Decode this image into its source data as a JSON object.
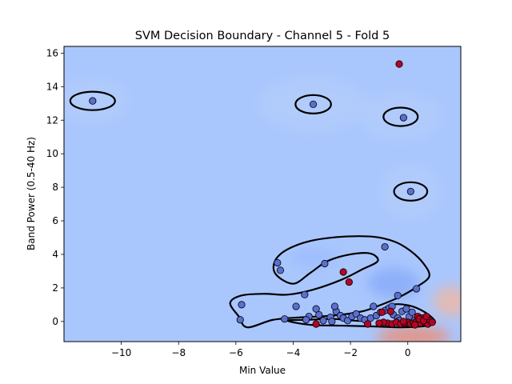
{
  "chart_data": {
    "type": "scatter",
    "title": "SVM Decision Boundary - Channel 5 - Fold 5",
    "xlabel": "Min Value",
    "ylabel": "Band Power (0.5-40 Hz)",
    "xlim": [
      -12.0,
      1.85
    ],
    "ylim": [
      -1.2,
      16.4
    ],
    "xticks": [
      -10,
      -8,
      -6,
      -4,
      -2,
      0
    ],
    "xtick_labels": [
      "−10",
      "−8",
      "−6",
      "−4",
      "−2",
      "0"
    ],
    "yticks": [
      0,
      2,
      4,
      6,
      8,
      10,
      12,
      14,
      16
    ],
    "ytick_labels": [
      "0",
      "2",
      "4",
      "6",
      "8",
      "10",
      "12",
      "14",
      "16"
    ],
    "grid": false,
    "colors": {
      "class_0": "#3b4cc0",
      "class_1": "#b40426",
      "background": "#aac7fd",
      "boundary": "#000000"
    },
    "series": [
      {
        "class": 0,
        "color": "#5a6fd0",
        "points": [
          [
            -11.0,
            13.15
          ],
          [
            -3.3,
            12.95
          ],
          [
            -0.15,
            12.15
          ],
          [
            0.1,
            7.75
          ],
          [
            -0.8,
            4.45
          ],
          [
            -4.55,
            3.5
          ],
          [
            -4.45,
            3.05
          ],
          [
            -2.9,
            3.45
          ],
          [
            -3.6,
            1.6
          ],
          [
            0.3,
            1.95
          ],
          [
            -0.35,
            1.55
          ],
          [
            -5.8,
            1.0
          ],
          [
            -5.85,
            0.1
          ],
          [
            -3.9,
            0.9
          ],
          [
            -4.3,
            0.15
          ],
          [
            -3.45,
            0.3
          ],
          [
            -3.2,
            0.75
          ],
          [
            -3.1,
            0.4
          ],
          [
            -2.7,
            0.25
          ],
          [
            -2.5,
            0.6
          ],
          [
            -2.55,
            0.9
          ],
          [
            -2.35,
            0.35
          ],
          [
            -2.25,
            0.2
          ],
          [
            -2.1,
            0.05
          ],
          [
            -1.95,
            0.3
          ],
          [
            -1.8,
            0.45
          ],
          [
            -1.65,
            0.2
          ],
          [
            -1.5,
            0.1
          ],
          [
            -1.3,
            0.2
          ],
          [
            -1.1,
            0.35
          ],
          [
            -0.95,
            0.55
          ],
          [
            -0.8,
            0.65
          ],
          [
            -0.65,
            0.8
          ],
          [
            -0.5,
            0.4
          ],
          [
            -0.35,
            0.2
          ],
          [
            -0.2,
            0.6
          ],
          [
            -0.05,
            0.75
          ],
          [
            0.05,
            0.3
          ],
          [
            0.15,
            0.55
          ],
          [
            0.25,
            0.1
          ],
          [
            -2.95,
            0.05
          ],
          [
            -2.65,
            0.0
          ],
          [
            -3.55,
            0.1
          ],
          [
            -1.2,
            0.9
          ],
          [
            -0.55,
            0.9
          ],
          [
            -0.3,
            0.05
          ]
        ]
      },
      {
        "class": 1,
        "color": "#b40426",
        "points": [
          [
            -0.3,
            15.35
          ],
          [
            -2.25,
            2.95
          ],
          [
            -2.05,
            2.35
          ],
          [
            -0.9,
            0.55
          ],
          [
            -0.6,
            0.6
          ],
          [
            -3.2,
            -0.15
          ],
          [
            -1.4,
            -0.15
          ],
          [
            -0.7,
            -0.1
          ],
          [
            -0.55,
            -0.15
          ],
          [
            -0.4,
            -0.05
          ],
          [
            -0.25,
            -0.15
          ],
          [
            -0.1,
            -0.1
          ],
          [
            0.0,
            -0.05
          ],
          [
            0.1,
            -0.15
          ],
          [
            0.2,
            -0.1
          ],
          [
            0.3,
            0.0
          ],
          [
            0.35,
            0.3
          ],
          [
            0.45,
            -0.1
          ],
          [
            0.5,
            0.2
          ],
          [
            0.6,
            -0.05
          ],
          [
            0.7,
            -0.15
          ],
          [
            0.75,
            0.1
          ],
          [
            0.85,
            -0.05
          ],
          [
            -0.85,
            -0.05
          ],
          [
            -1.0,
            -0.1
          ],
          [
            0.4,
            0.15
          ],
          [
            0.55,
            0.05
          ],
          [
            0.25,
            -0.2
          ],
          [
            -0.15,
            0.0
          ],
          [
            0.65,
            0.3
          ]
        ]
      }
    ],
    "decision_boundary": [
      {
        "type": "ellipse",
        "center": [
          -11.0,
          13.15
        ],
        "rx": 0.78,
        "ry": 0.55
      },
      {
        "type": "ellipse",
        "center": [
          -3.3,
          12.95
        ],
        "rx": 0.62,
        "ry": 0.55
      },
      {
        "type": "ellipse",
        "center": [
          -0.25,
          12.2
        ],
        "rx": 0.6,
        "ry": 0.55
      },
      {
        "type": "ellipse",
        "center": [
          0.1,
          7.75
        ],
        "rx": 0.58,
        "ry": 0.55
      },
      {
        "type": "path",
        "points": [
          [
            -4.0,
            2.25
          ],
          [
            -4.6,
            2.8
          ],
          [
            -4.65,
            3.55
          ],
          [
            -4.25,
            4.25
          ],
          [
            -3.4,
            4.8
          ],
          [
            -2.3,
            5.05
          ],
          [
            -1.2,
            5.05
          ],
          [
            -0.45,
            4.75
          ],
          [
            0.1,
            4.2
          ],
          [
            0.55,
            3.45
          ],
          [
            0.75,
            2.7
          ],
          [
            0.35,
            2.1
          ],
          [
            -0.3,
            1.45
          ],
          [
            -1.0,
            0.95
          ],
          [
            -1.6,
            0.6
          ],
          [
            -2.6,
            0.35
          ],
          [
            -3.7,
            0.25
          ],
          [
            -4.7,
            0.1
          ],
          [
            -5.6,
            -0.35
          ],
          [
            -5.9,
            0.3
          ],
          [
            -6.2,
            1.1
          ],
          [
            -5.8,
            1.55
          ],
          [
            -5.0,
            1.65
          ],
          [
            -4.2,
            1.6
          ],
          [
            -3.3,
            1.9
          ],
          [
            -2.3,
            2.5
          ],
          [
            -1.6,
            3.1
          ],
          [
            -1.05,
            3.6
          ],
          [
            -1.3,
            4.05
          ],
          [
            -2.0,
            4.0
          ],
          [
            -2.8,
            3.6
          ],
          [
            -3.4,
            2.9
          ],
          [
            -4.0,
            2.25
          ]
        ]
      },
      {
        "type": "path",
        "points": [
          [
            -4.2,
            0.05
          ],
          [
            -3.5,
            0.1
          ],
          [
            -2.6,
            0.15
          ],
          [
            -1.5,
            0.05
          ],
          [
            -1.0,
            0.6
          ],
          [
            -0.55,
            1.0
          ],
          [
            0.05,
            0.95
          ],
          [
            0.6,
            0.55
          ],
          [
            0.95,
            0.0
          ],
          [
            0.7,
            -0.25
          ],
          [
            -0.2,
            -0.35
          ],
          [
            -1.1,
            -0.3
          ],
          [
            -2.3,
            -0.25
          ],
          [
            -3.4,
            -0.2
          ],
          [
            -4.2,
            0.05
          ]
        ]
      }
    ],
    "density_regions": [
      {
        "center": [
          -0.5,
          2.3
        ],
        "rx": 0.9,
        "ry": 0.9,
        "color": "#7b9ff9",
        "opacity": 0.6
      },
      {
        "center": [
          -3.3,
          3.8
        ],
        "rx": 0.9,
        "ry": 0.6,
        "color": "#93b5fe",
        "opacity": 0.5
      },
      {
        "center": [
          -3.3,
          12.95
        ],
        "rx": 1.9,
        "ry": 1.6,
        "color": "#b7cff9",
        "opacity": 0.5
      },
      {
        "center": [
          -0.25,
          12.2
        ],
        "rx": 1.4,
        "ry": 1.4,
        "color": "#b7cff9",
        "opacity": 0.5
      },
      {
        "center": [
          -11.0,
          13.15
        ],
        "rx": 1.2,
        "ry": 1.3,
        "color": "#b7cff9",
        "opacity": 0.5
      },
      {
        "center": [
          0.1,
          7.75
        ],
        "rx": 1.0,
        "ry": 1.6,
        "color": "#b7cff9",
        "opacity": 0.5
      },
      {
        "center": [
          1.5,
          1.2
        ],
        "rx": 0.6,
        "ry": 0.9,
        "color": "#f7b599",
        "opacity": 0.75
      },
      {
        "center": [
          0.2,
          -0.9
        ],
        "rx": 1.3,
        "ry": 0.6,
        "color": "#f08a6c",
        "opacity": 0.8
      }
    ]
  }
}
